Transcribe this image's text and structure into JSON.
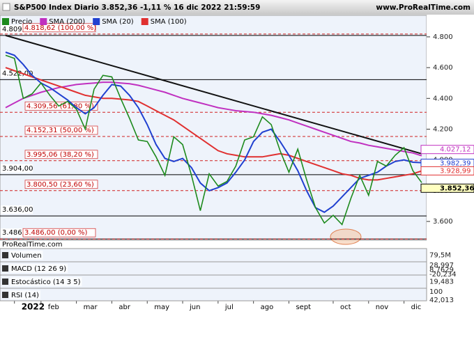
{
  "chart_data": {
    "type": "line",
    "title": "S&P500 Index Diario 3.852,36 -1,11 % 16 dic 2022 21:59:59",
    "site": "www.ProRealTime.com",
    "watermark": "ProRealTime.com",
    "categories": [
      null,
      "2022",
      null,
      null,
      "feb",
      null,
      null,
      null,
      "mar",
      null,
      null,
      null,
      "abr",
      null,
      null,
      null,
      "may",
      null,
      null,
      null,
      "jun",
      null,
      null,
      null,
      "jul",
      null,
      null,
      null,
      "ago",
      null,
      null,
      null,
      "sept",
      null,
      null,
      null,
      null,
      "oct",
      null,
      null,
      null,
      "nov",
      null,
      null,
      null,
      "dic",
      null,
      null
    ],
    "series": [
      {
        "name": "Precio",
        "color": "#1d8a1d",
        "last_label": "3.852,36",
        "values": [
          4680,
          4660,
          4400,
          4430,
          4500,
          4420,
          4350,
          4380,
          4330,
          4200,
          4460,
          4550,
          4540,
          4400,
          4270,
          4130,
          4120,
          4020,
          3900,
          4150,
          4100,
          3900,
          3670,
          3910,
          3830,
          3860,
          3960,
          4130,
          4150,
          4280,
          4230,
          4060,
          3920,
          4070,
          3870,
          3690,
          3590,
          3640,
          3580,
          3750,
          3900,
          3770,
          3990,
          3960,
          4030,
          4080,
          3930,
          3852.36
        ]
      },
      {
        "name": "SMA (200)",
        "color": "#c030c0",
        "last_label": "4.027,12",
        "values": [
          4340,
          4370,
          4400,
          4420,
          4440,
          4455,
          4470,
          4480,
          4490,
          4495,
          4500,
          4505,
          4505,
          4500,
          4495,
          4485,
          4470,
          4455,
          4440,
          4420,
          4400,
          4385,
          4370,
          4355,
          4340,
          4330,
          4320,
          4315,
          4310,
          4300,
          4290,
          4275,
          4260,
          4240,
          4220,
          4200,
          4180,
          4160,
          4140,
          4120,
          4110,
          4095,
          4085,
          4075,
          4065,
          4055,
          4045,
          4027.12
        ]
      },
      {
        "name": "SMA (20)",
        "color": "#2040d0",
        "last_label": "3.982,39",
        "values": [
          4700,
          4680,
          4620,
          4550,
          4500,
          4470,
          4430,
          4390,
          4340,
          4300,
          4340,
          4420,
          4490,
          4480,
          4420,
          4340,
          4230,
          4100,
          4010,
          3990,
          4010,
          3950,
          3850,
          3800,
          3820,
          3850,
          3920,
          4000,
          4120,
          4180,
          4200,
          4120,
          4030,
          3930,
          3800,
          3690,
          3660,
          3700,
          3760,
          3820,
          3880,
          3900,
          3920,
          3960,
          3990,
          4000,
          3985,
          3982.39
        ]
      },
      {
        "name": "SMA (100)",
        "color": "#e03030",
        "last_label": "3.928,99",
        "values": [
          4600,
          4580,
          4560,
          4540,
          4520,
          4500,
          4480,
          4460,
          4440,
          4420,
          4410,
          4400,
          4400,
          4395,
          4390,
          4380,
          4350,
          4320,
          4290,
          4260,
          4220,
          4180,
          4140,
          4100,
          4060,
          4040,
          4030,
          4020,
          4020,
          4020,
          4030,
          4040,
          4030,
          4010,
          3990,
          3970,
          3950,
          3930,
          3910,
          3900,
          3880,
          3870,
          3870,
          3880,
          3890,
          3900,
          3910,
          3928.99
        ]
      }
    ],
    "ylim": [
      3478,
      4940
    ],
    "yticks": [
      {
        "value": 3600,
        "label": "3.600"
      },
      {
        "value": 3800,
        "label": "3.800"
      },
      {
        "value": 4000,
        "label": "4.000"
      },
      {
        "value": 4200,
        "label": "4.200"
      },
      {
        "value": 4400,
        "label": "4.400"
      },
      {
        "value": 4600,
        "label": "4.600"
      },
      {
        "value": 4800,
        "label": "4.800"
      }
    ],
    "levels": [
      {
        "value": 4809.2,
        "label": "4.809,20"
      },
      {
        "value": 4522,
        "label": "4.522,00"
      },
      {
        "value": 3904,
        "label": "3.904,00"
      },
      {
        "value": 3636,
        "label": "3.636,00"
      },
      {
        "value": 3486,
        "label": "3.486,00"
      }
    ],
    "fibonacci": [
      {
        "value": 4818.62,
        "label": "4.818,62 (100,00 %)"
      },
      {
        "value": 4309.56,
        "label": "4.309,56 (61,80 %)"
      },
      {
        "value": 4152.31,
        "label": "4.152,31 (50,00 %)"
      },
      {
        "value": 3995.06,
        "label": "3.995,06 (38,20 %)"
      },
      {
        "value": 3800.5,
        "label": "3.800,50 (23,60 %)"
      },
      {
        "value": 3486,
        "label": "3.486,00 (0,00 %)"
      }
    ],
    "trendline": [
      4809.2,
      4040
    ],
    "indicators": [
      {
        "name": "Volumen",
        "labels": [
          "79,5M"
        ]
      },
      {
        "name": "MACD (12 26 9)",
        "labels": [
          "28,997",
          "8,7629",
          "-20,234"
        ]
      },
      {
        "name": "Estocástico (14 3 5)",
        "labels": [
          "19,483"
        ]
      },
      {
        "name": "RSI (14)",
        "labels": [
          "100",
          "42,013"
        ]
      }
    ]
  }
}
